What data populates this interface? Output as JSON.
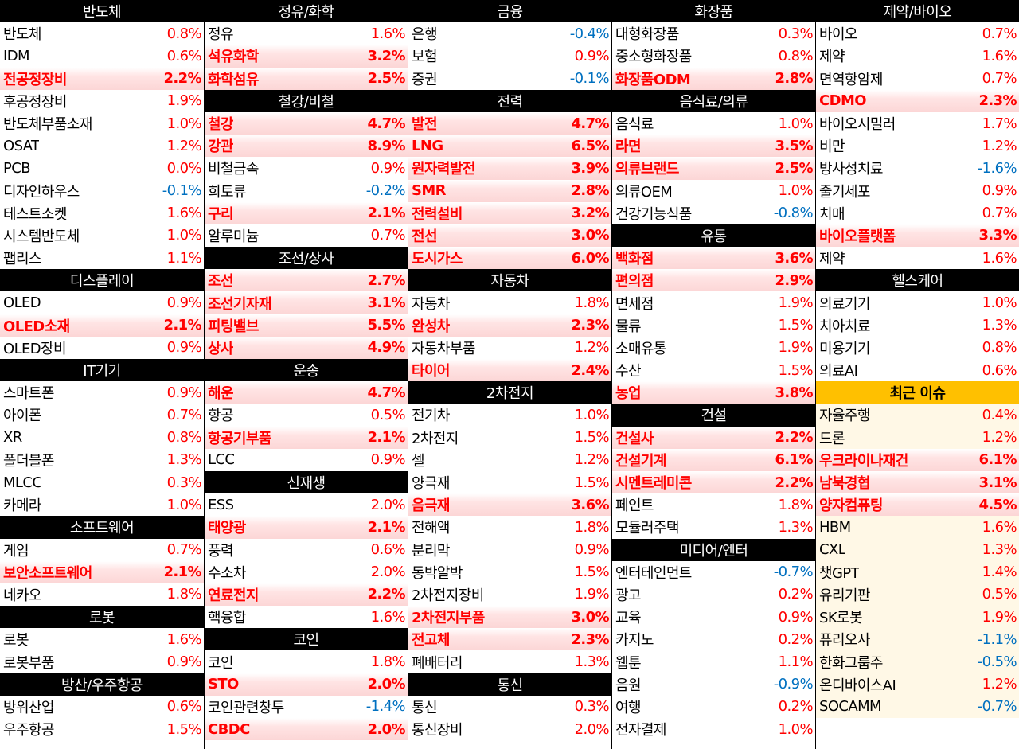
{
  "columns": [
    {
      "sections": [
        {
          "title": "반도체",
          "items": [
            {
              "name": "반도체",
              "value": "0.8%",
              "dir": "up"
            },
            {
              "name": "IDM",
              "value": "0.6%",
              "dir": "up"
            },
            {
              "name": "전공정장비",
              "value": "2.2%",
              "dir": "up",
              "hot": true
            },
            {
              "name": "후공정장비",
              "value": "1.9%",
              "dir": "up"
            },
            {
              "name": "반도체부품소재",
              "value": "1.0%",
              "dir": "up"
            },
            {
              "name": "OSAT",
              "value": "1.2%",
              "dir": "up"
            },
            {
              "name": "PCB",
              "value": "0.0%",
              "dir": "up"
            },
            {
              "name": "디자인하우스",
              "value": "-0.1%",
              "dir": "dn"
            },
            {
              "name": "테스트소켓",
              "value": "1.6%",
              "dir": "up"
            },
            {
              "name": "시스템반도체",
              "value": "1.0%",
              "dir": "up"
            },
            {
              "name": "팹리스",
              "value": "1.1%",
              "dir": "up"
            }
          ]
        },
        {
          "title": "디스플레이",
          "items": [
            {
              "name": "OLED",
              "value": "0.9%",
              "dir": "up"
            },
            {
              "name": "OLED소재",
              "value": "2.1%",
              "dir": "up",
              "hot": true
            },
            {
              "name": "OLED장비",
              "value": "0.9%",
              "dir": "up"
            }
          ]
        },
        {
          "title": "IT기기",
          "items": [
            {
              "name": "스마트폰",
              "value": "0.9%",
              "dir": "up"
            },
            {
              "name": "아이폰",
              "value": "0.7%",
              "dir": "up"
            },
            {
              "name": "XR",
              "value": "0.8%",
              "dir": "up"
            },
            {
              "name": "폴더블폰",
              "value": "1.3%",
              "dir": "up"
            },
            {
              "name": "MLCC",
              "value": "0.3%",
              "dir": "up"
            },
            {
              "name": "카메라",
              "value": "1.0%",
              "dir": "up"
            }
          ]
        },
        {
          "title": "소프트웨어",
          "items": [
            {
              "name": "게임",
              "value": "0.7%",
              "dir": "up"
            },
            {
              "name": "보안소프트웨어",
              "value": "2.1%",
              "dir": "up",
              "hot": true
            },
            {
              "name": "네카오",
              "value": "1.8%",
              "dir": "up"
            }
          ]
        },
        {
          "title": "로봇",
          "items": [
            {
              "name": "로봇",
              "value": "1.6%",
              "dir": "up"
            },
            {
              "name": "로봇부품",
              "value": "0.9%",
              "dir": "up"
            }
          ]
        },
        {
          "title": "방산/우주항공",
          "items": [
            {
              "name": "방위산업",
              "value": "0.6%",
              "dir": "up"
            },
            {
              "name": "우주항공",
              "value": "1.5%",
              "dir": "up"
            }
          ]
        }
      ]
    },
    {
      "sections": [
        {
          "title": "정유/화학",
          "items": [
            {
              "name": "정유",
              "value": "1.6%",
              "dir": "up"
            },
            {
              "name": "석유화학",
              "value": "3.2%",
              "dir": "up",
              "hot": true
            },
            {
              "name": "화학섬유",
              "value": "2.5%",
              "dir": "up",
              "hot": true
            }
          ]
        },
        {
          "title": "철강/비철",
          "items": [
            {
              "name": "철강",
              "value": "4.7%",
              "dir": "up",
              "hot": true
            },
            {
              "name": "강관",
              "value": "8.9%",
              "dir": "up",
              "hot": true
            },
            {
              "name": "비철금속",
              "value": "0.9%",
              "dir": "up"
            },
            {
              "name": "희토류",
              "value": "-0.2%",
              "dir": "dn"
            },
            {
              "name": "구리",
              "value": "2.1%",
              "dir": "up",
              "hot": true
            },
            {
              "name": "알루미늄",
              "value": "0.7%",
              "dir": "up"
            }
          ]
        },
        {
          "title": "조선/상사",
          "items": [
            {
              "name": "조선",
              "value": "2.7%",
              "dir": "up",
              "hot": true
            },
            {
              "name": "조선기자재",
              "value": "3.1%",
              "dir": "up",
              "hot": true
            },
            {
              "name": "피팅밸브",
              "value": "5.5%",
              "dir": "up",
              "hot": true
            },
            {
              "name": "상사",
              "value": "4.9%",
              "dir": "up",
              "hot": true
            }
          ]
        },
        {
          "title": "운송",
          "items": [
            {
              "name": "해운",
              "value": "4.7%",
              "dir": "up",
              "hot": true
            },
            {
              "name": "항공",
              "value": "0.5%",
              "dir": "up"
            },
            {
              "name": "항공기부품",
              "value": "2.1%",
              "dir": "up",
              "hot": true
            },
            {
              "name": "LCC",
              "value": "0.9%",
              "dir": "up"
            }
          ]
        },
        {
          "title": "신재생",
          "items": [
            {
              "name": "ESS",
              "value": "2.0%",
              "dir": "up"
            },
            {
              "name": "태양광",
              "value": "2.1%",
              "dir": "up",
              "hot": true
            },
            {
              "name": "풍력",
              "value": "0.6%",
              "dir": "up"
            },
            {
              "name": "수소차",
              "value": "2.0%",
              "dir": "up"
            },
            {
              "name": "연료전지",
              "value": "2.2%",
              "dir": "up",
              "hot": true
            },
            {
              "name": "핵융합",
              "value": "1.6%",
              "dir": "up"
            }
          ]
        },
        {
          "title": "코인",
          "items": [
            {
              "name": "코인",
              "value": "1.8%",
              "dir": "up"
            },
            {
              "name": "STO",
              "value": "2.0%",
              "dir": "up",
              "hot": true
            },
            {
              "name": "코인관련창투",
              "value": "-1.4%",
              "dir": "dn"
            },
            {
              "name": "CBDC",
              "value": "2.0%",
              "dir": "up",
              "hot": true
            }
          ]
        }
      ]
    },
    {
      "sections": [
        {
          "title": "금융",
          "items": [
            {
              "name": "은행",
              "value": "-0.4%",
              "dir": "dn"
            },
            {
              "name": "보험",
              "value": "0.9%",
              "dir": "up"
            },
            {
              "name": "증권",
              "value": "-0.1%",
              "dir": "dn"
            }
          ]
        },
        {
          "title": "전력",
          "items": [
            {
              "name": "발전",
              "value": "4.7%",
              "dir": "up",
              "hot": true
            },
            {
              "name": "LNG",
              "value": "6.5%",
              "dir": "up",
              "hot": true
            },
            {
              "name": "원자력발전",
              "value": "3.9%",
              "dir": "up",
              "hot": true
            },
            {
              "name": "SMR",
              "value": "2.8%",
              "dir": "up",
              "hot": true
            },
            {
              "name": "전력설비",
              "value": "3.2%",
              "dir": "up",
              "hot": true
            },
            {
              "name": "전선",
              "value": "3.0%",
              "dir": "up",
              "hot": true
            },
            {
              "name": "도시가스",
              "value": "6.0%",
              "dir": "up",
              "hot": true
            }
          ]
        },
        {
          "title": "자동차",
          "items": [
            {
              "name": "자동차",
              "value": "1.8%",
              "dir": "up"
            },
            {
              "name": "완성차",
              "value": "2.3%",
              "dir": "up",
              "hot": true
            },
            {
              "name": "자동차부품",
              "value": "1.2%",
              "dir": "up"
            },
            {
              "name": "타이어",
              "value": "2.4%",
              "dir": "up",
              "hot": true
            }
          ]
        },
        {
          "title": "2차전지",
          "items": [
            {
              "name": "전기차",
              "value": "1.0%",
              "dir": "up"
            },
            {
              "name": "2차전지",
              "value": "1.5%",
              "dir": "up"
            },
            {
              "name": "셀",
              "value": "1.2%",
              "dir": "up"
            },
            {
              "name": "양극재",
              "value": "1.5%",
              "dir": "up"
            },
            {
              "name": "음극재",
              "value": "3.6%",
              "dir": "up",
              "hot": true
            },
            {
              "name": "전해액",
              "value": "1.8%",
              "dir": "up"
            },
            {
              "name": "분리막",
              "value": "0.9%",
              "dir": "up"
            },
            {
              "name": "동박알박",
              "value": "1.5%",
              "dir": "up"
            },
            {
              "name": "2차전지장비",
              "value": "1.9%",
              "dir": "up"
            },
            {
              "name": "2차전지부품",
              "value": "3.0%",
              "dir": "up",
              "hot": true
            },
            {
              "name": "전고체",
              "value": "2.3%",
              "dir": "up",
              "hot": true
            },
            {
              "name": "폐배터리",
              "value": "1.3%",
              "dir": "up"
            }
          ]
        },
        {
          "title": "통신",
          "items": [
            {
              "name": "통신",
              "value": "0.3%",
              "dir": "up"
            },
            {
              "name": "통신장비",
              "value": "2.0%",
              "dir": "up"
            }
          ]
        }
      ]
    },
    {
      "sections": [
        {
          "title": "화장품",
          "items": [
            {
              "name": "대형화장품",
              "value": "0.3%",
              "dir": "up"
            },
            {
              "name": "중소형화장품",
              "value": "0.8%",
              "dir": "up"
            },
            {
              "name": "화장품ODM",
              "value": "2.8%",
              "dir": "up",
              "hot": true
            }
          ]
        },
        {
          "title": "음식료/의류",
          "items": [
            {
              "name": "음식료",
              "value": "1.0%",
              "dir": "up"
            },
            {
              "name": "라면",
              "value": "3.5%",
              "dir": "up",
              "hot": true
            },
            {
              "name": "의류브랜드",
              "value": "2.5%",
              "dir": "up",
              "hot": true
            },
            {
              "name": "의류OEM",
              "value": "1.0%",
              "dir": "up"
            },
            {
              "name": "건강기능식품",
              "value": "-0.8%",
              "dir": "dn"
            }
          ]
        },
        {
          "title": "유통",
          "items": [
            {
              "name": "백화점",
              "value": "3.6%",
              "dir": "up",
              "hot": true
            },
            {
              "name": "편의점",
              "value": "2.9%",
              "dir": "up",
              "hot": true
            },
            {
              "name": "면세점",
              "value": "1.9%",
              "dir": "up"
            },
            {
              "name": "물류",
              "value": "1.5%",
              "dir": "up"
            },
            {
              "name": "소매유통",
              "value": "1.9%",
              "dir": "up"
            },
            {
              "name": "수산",
              "value": "1.5%",
              "dir": "up"
            },
            {
              "name": "농업",
              "value": "3.8%",
              "dir": "up",
              "hot": true
            }
          ]
        },
        {
          "title": "건설",
          "items": [
            {
              "name": "건설사",
              "value": "2.2%",
              "dir": "up",
              "hot": true
            },
            {
              "name": "건설기계",
              "value": "6.1%",
              "dir": "up",
              "hot": true
            },
            {
              "name": "시멘트레미콘",
              "value": "2.2%",
              "dir": "up",
              "hot": true
            },
            {
              "name": "페인트",
              "value": "1.8%",
              "dir": "up"
            },
            {
              "name": "모듈러주택",
              "value": "1.3%",
              "dir": "up"
            }
          ]
        },
        {
          "title": "미디어/엔터",
          "items": [
            {
              "name": "엔터테인먼트",
              "value": "-0.7%",
              "dir": "dn"
            },
            {
              "name": "광고",
              "value": "0.2%",
              "dir": "up"
            },
            {
              "name": "교육",
              "value": "0.9%",
              "dir": "up"
            },
            {
              "name": "카지노",
              "value": "0.2%",
              "dir": "up"
            },
            {
              "name": "웹툰",
              "value": "1.1%",
              "dir": "up"
            },
            {
              "name": "음원",
              "value": "-0.9%",
              "dir": "dn"
            },
            {
              "name": "여행",
              "value": "0.2%",
              "dir": "up"
            },
            {
              "name": "전자결제",
              "value": "1.0%",
              "dir": "up"
            }
          ]
        }
      ]
    },
    {
      "sections": [
        {
          "title": "제약/바이오",
          "items": [
            {
              "name": "바이오",
              "value": "0.7%",
              "dir": "up"
            },
            {
              "name": "제약",
              "value": "1.6%",
              "dir": "up"
            },
            {
              "name": "면역항암제",
              "value": "0.7%",
              "dir": "up"
            },
            {
              "name": "CDMO",
              "value": "2.3%",
              "dir": "up",
              "hot": true
            },
            {
              "name": "바이오시밀러",
              "value": "1.7%",
              "dir": "up"
            },
            {
              "name": "비만",
              "value": "1.2%",
              "dir": "up"
            },
            {
              "name": "방사성치료",
              "value": "-1.6%",
              "dir": "dn"
            },
            {
              "name": "줄기세포",
              "value": "0.9%",
              "dir": "up"
            },
            {
              "name": "치매",
              "value": "0.7%",
              "dir": "up"
            },
            {
              "name": "바이오플랫폼",
              "value": "3.3%",
              "dir": "up",
              "hot": true
            },
            {
              "name": "제약",
              "value": "1.6%",
              "dir": "up"
            }
          ]
        },
        {
          "title": "헬스케어",
          "items": [
            {
              "name": "의료기기",
              "value": "1.0%",
              "dir": "up"
            },
            {
              "name": "치아치료",
              "value": "1.3%",
              "dir": "up"
            },
            {
              "name": "미용기기",
              "value": "0.8%",
              "dir": "up"
            },
            {
              "name": "의료AI",
              "value": "0.6%",
              "dir": "up"
            }
          ]
        },
        {
          "title": "최근 이슈",
          "issue": true,
          "items": [
            {
              "name": "자율주행",
              "value": "0.4%",
              "dir": "up"
            },
            {
              "name": "드론",
              "value": "1.2%",
              "dir": "up"
            },
            {
              "name": "우크라이나재건",
              "value": "6.1%",
              "dir": "up",
              "hot": true
            },
            {
              "name": "남북경협",
              "value": "3.1%",
              "dir": "up",
              "hot": true
            },
            {
              "name": "양자컴퓨팅",
              "value": "4.5%",
              "dir": "up",
              "hot": true
            },
            {
              "name": "HBM",
              "value": "1.6%",
              "dir": "up"
            },
            {
              "name": "CXL",
              "value": "1.3%",
              "dir": "up"
            },
            {
              "name": "챗GPT",
              "value": "1.4%",
              "dir": "up"
            },
            {
              "name": "유리기판",
              "value": "0.5%",
              "dir": "up"
            },
            {
              "name": "SK로봇",
              "value": "1.9%",
              "dir": "up"
            },
            {
              "name": "퓨리오사",
              "value": "-1.1%",
              "dir": "dn"
            },
            {
              "name": "한화그룹주",
              "value": "-0.5%",
              "dir": "dn"
            },
            {
              "name": "온디바이스AI",
              "value": "1.2%",
              "dir": "up"
            },
            {
              "name": "SOCAMM",
              "value": "-0.7%",
              "dir": "dn"
            }
          ]
        }
      ]
    }
  ],
  "colors": {
    "up": "#ff0000",
    "down": "#0070c0",
    "header_bg": "#000000",
    "issue_header_bg": "#ffc000",
    "hot_row_bg": "#fcd6d6"
  }
}
